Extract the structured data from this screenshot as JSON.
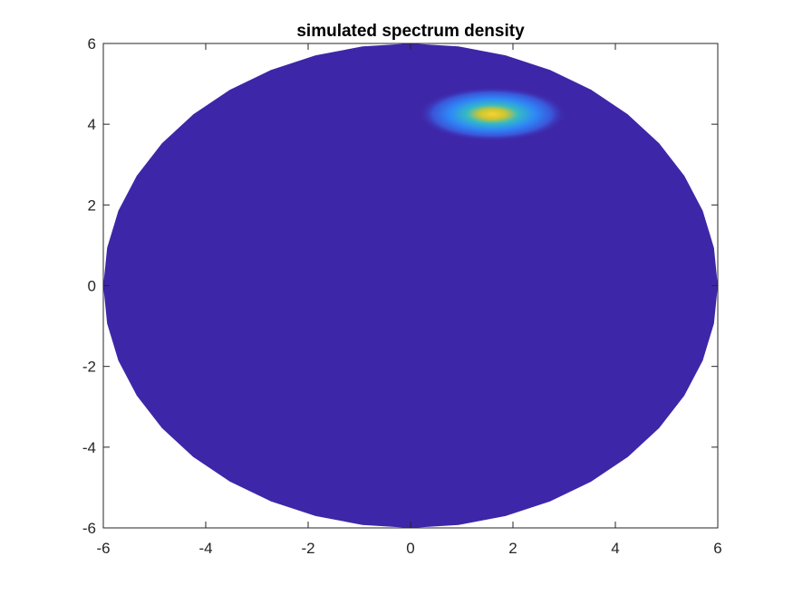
{
  "chart_data": {
    "type": "heatmap",
    "title": "simulated spectrum density",
    "xlabel": "",
    "ylabel": "",
    "xlim": [
      -6,
      6
    ],
    "ylim": [
      -6,
      6
    ],
    "x_ticks": [
      -6,
      -4,
      -2,
      0,
      2,
      4,
      6
    ],
    "y_ticks": [
      -6,
      -4,
      -2,
      0,
      2,
      4,
      6
    ],
    "x_tick_labels": [
      "-6",
      "-4",
      "-2",
      "0",
      "2",
      "4",
      "6"
    ],
    "y_tick_labels": [
      "-6",
      "-4",
      "-2",
      "0",
      "2",
      "4",
      "6"
    ],
    "grid": false,
    "colormap": "parula",
    "domain": {
      "shape": "disk",
      "center": [
        0,
        0
      ],
      "radius": 6
    },
    "background_value_color": "#3e26a8",
    "peak": {
      "x": 1.6,
      "y": 4.25,
      "relative_intensity": 1.0
    },
    "colors": {
      "low": "#3e26a8",
      "mid_low": "#2e87f7",
      "mid": "#35b9c5",
      "mid_high": "#a2c83c",
      "high": "#f8d22f",
      "axes": "#262626"
    }
  }
}
